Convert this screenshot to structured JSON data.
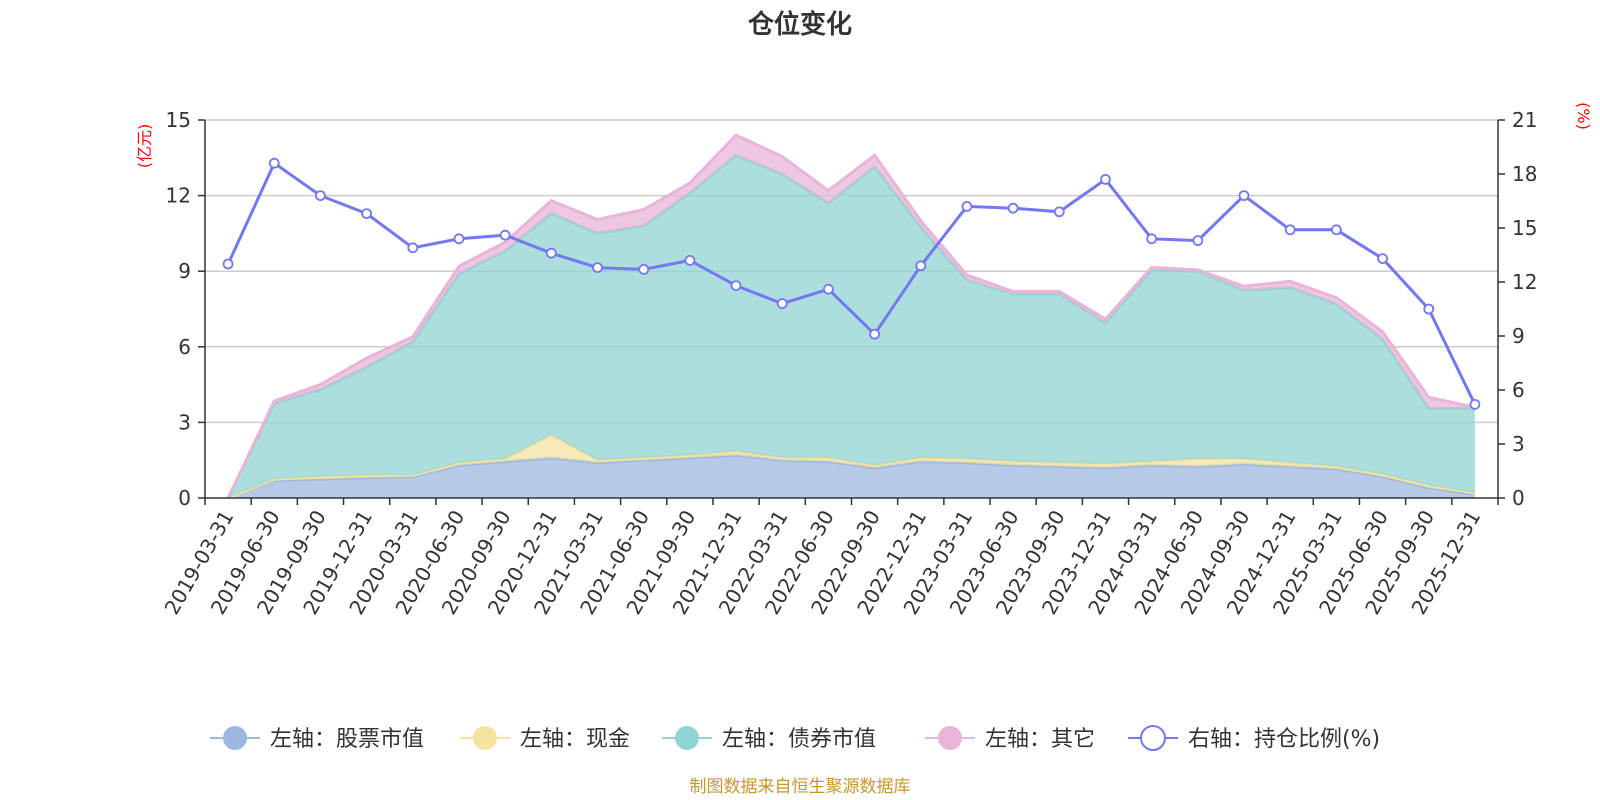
{
  "chart_data": {
    "type": "area",
    "title": "仓位变化",
    "left_axis_unit": "(亿元)",
    "right_axis_unit": "(%)",
    "left_ylim": [
      0,
      15
    ],
    "left_ticks": [
      "0",
      "3",
      "6",
      "9",
      "12",
      "15"
    ],
    "right_ylim": [
      0,
      21
    ],
    "right_ticks": [
      "0",
      "3",
      "6",
      "9",
      "12",
      "15",
      "18",
      "21"
    ],
    "x": [
      "2019-03-31",
      "2019-06-30",
      "2019-09-30",
      "2019-12-31",
      "2020-03-31",
      "2020-06-30",
      "2020-09-30",
      "2020-12-31",
      "2021-03-31",
      "2021-06-30",
      "2021-09-30",
      "2021-12-31",
      "2022-03-31",
      "2022-06-30",
      "2022-09-30",
      "2022-12-31",
      "2023-03-31",
      "2023-06-30",
      "2023-09-30",
      "2023-12-31",
      "2024-03-31",
      "2024-06-30",
      "2024-09-30",
      "2024-12-31",
      "2025-03-31",
      "2025-06-30",
      "2025-09-30",
      "2025-12-31"
    ],
    "series": [
      {
        "name": "左轴：股票市值",
        "axis": "left",
        "stack": true,
        "color": "#9db8e0",
        "values": [
          0.0,
          0.7,
          0.75,
          0.8,
          0.85,
          1.3,
          1.45,
          1.6,
          1.4,
          1.5,
          1.6,
          1.7,
          1.5,
          1.45,
          1.2,
          1.45,
          1.4,
          1.3,
          1.25,
          1.2,
          1.3,
          1.25,
          1.35,
          1.25,
          1.15,
          0.85,
          0.4,
          0.15
        ]
      },
      {
        "name": "左轴：现金",
        "axis": "left",
        "stack": true,
        "color": "#f5e3a0",
        "values": [
          0.0,
          0.05,
          0.1,
          0.1,
          0.05,
          0.1,
          0.1,
          0.9,
          0.1,
          0.1,
          0.1,
          0.15,
          0.1,
          0.15,
          0.1,
          0.15,
          0.15,
          0.15,
          0.15,
          0.15,
          0.15,
          0.3,
          0.2,
          0.15,
          0.1,
          0.1,
          0.1,
          0.05
        ]
      },
      {
        "name": "左轴：债券市值",
        "axis": "left",
        "stack": true,
        "color": "#92d3d3",
        "values": [
          0.0,
          3.0,
          3.45,
          4.3,
          5.3,
          7.5,
          8.25,
          8.8,
          9.0,
          9.2,
          10.4,
          11.75,
          11.25,
          10.1,
          11.85,
          9.15,
          7.1,
          6.65,
          6.7,
          5.6,
          7.6,
          7.45,
          6.7,
          6.95,
          6.45,
          5.35,
          3.05,
          3.35
        ]
      },
      {
        "name": "左轴：其它",
        "axis": "left",
        "stack": true,
        "color": "#e8b4d8",
        "values": [
          0.0,
          0.1,
          0.2,
          0.35,
          0.2,
          0.3,
          0.35,
          0.5,
          0.55,
          0.65,
          0.4,
          0.8,
          0.7,
          0.5,
          0.45,
          0.25,
          0.2,
          0.1,
          0.1,
          0.15,
          0.1,
          0.05,
          0.15,
          0.25,
          0.25,
          0.3,
          0.45,
          0.05
        ]
      },
      {
        "name": "右轴：持仓比例(%)",
        "axis": "right",
        "type": "line",
        "color": "#7378f0",
        "values": [
          13.0,
          18.6,
          16.8,
          15.8,
          13.9,
          14.4,
          14.6,
          13.6,
          12.8,
          12.7,
          13.2,
          11.8,
          10.8,
          11.6,
          9.1,
          12.9,
          16.2,
          16.1,
          15.9,
          17.7,
          14.4,
          14.3,
          16.8,
          14.9,
          14.9,
          13.3,
          10.5,
          5.2
        ]
      }
    ]
  },
  "legend": [
    "左轴：股票市值",
    "左轴：现金",
    "左轴：债券市值",
    "左轴：其它",
    "右轴：持仓比例(%)"
  ],
  "source_text": "制图数据来自恒生聚源数据库"
}
